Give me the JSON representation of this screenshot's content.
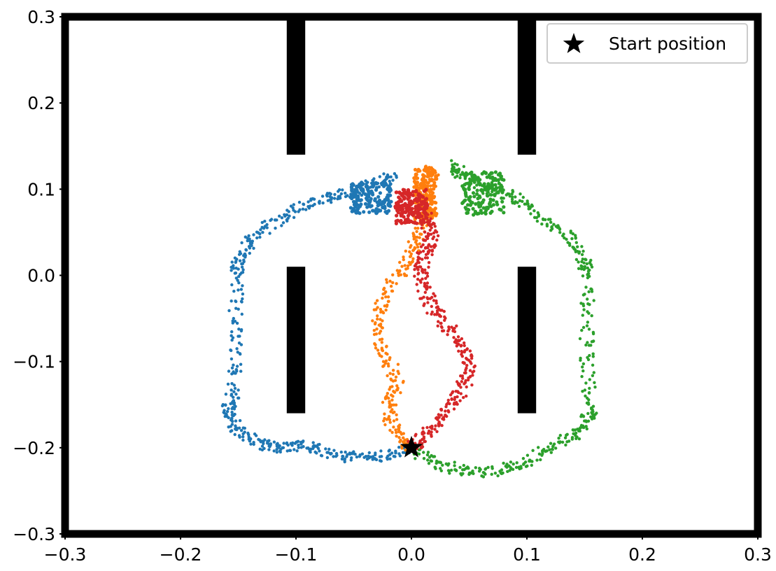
{
  "chart_data": {
    "type": "scatter",
    "title": "",
    "xlabel": "",
    "ylabel": "",
    "xlim": [
      -0.3,
      0.3
    ],
    "ylim": [
      -0.3,
      0.3
    ],
    "x_ticks": [
      -0.3,
      -0.2,
      -0.1,
      0.0,
      0.1,
      0.2,
      0.3
    ],
    "x_tick_labels": [
      "−0.3",
      "−0.2",
      "−0.1",
      "0.0",
      "0.1",
      "0.2",
      "0.3"
    ],
    "y_ticks": [
      -0.3,
      -0.2,
      -0.1,
      0.0,
      0.1,
      0.2,
      0.3
    ],
    "y_tick_labels": [
      "−0.3",
      "−0.2",
      "−0.1",
      "0.0",
      "0.1",
      "0.2",
      "0.3"
    ],
    "grid": false,
    "legend": {
      "location": "upper right",
      "entries": [
        {
          "label": "Start position",
          "marker": "star",
          "color": "#000000"
        }
      ]
    },
    "start_position": {
      "x": 0.0,
      "y": -0.2
    },
    "walls": [
      {
        "x": [
          -0.108,
          -0.092
        ],
        "y": [
          0.14,
          0.3
        ]
      },
      {
        "x": [
          0.092,
          0.108
        ],
        "y": [
          0.14,
          0.3
        ]
      },
      {
        "x": [
          -0.108,
          -0.092
        ],
        "y": [
          -0.16,
          0.01
        ]
      },
      {
        "x": [
          0.092,
          0.108
        ],
        "y": [
          -0.16,
          0.01
        ]
      }
    ],
    "series": [
      {
        "color": "#1f77b4",
        "path": [
          [
            0.0,
            -0.2
          ],
          [
            -0.02,
            -0.208
          ],
          [
            -0.04,
            -0.212
          ],
          [
            -0.06,
            -0.21
          ],
          [
            -0.08,
            -0.202
          ],
          [
            -0.095,
            -0.198
          ],
          [
            -0.11,
            -0.2
          ],
          [
            -0.125,
            -0.198
          ],
          [
            -0.14,
            -0.188
          ],
          [
            -0.152,
            -0.175
          ],
          [
            -0.16,
            -0.158
          ],
          [
            -0.155,
            -0.14
          ],
          [
            -0.152,
            -0.1
          ],
          [
            -0.152,
            -0.05
          ],
          [
            -0.152,
            0.0
          ],
          [
            -0.15,
            0.02
          ],
          [
            -0.14,
            0.04
          ],
          [
            -0.12,
            0.06
          ],
          [
            -0.1,
            0.077
          ],
          [
            -0.08,
            0.088
          ],
          [
            -0.06,
            0.094
          ],
          [
            -0.045,
            0.098
          ],
          [
            -0.03,
            0.108
          ],
          [
            -0.015,
            0.115
          ]
        ],
        "cluster": {
          "center": [
            -0.035,
            0.09
          ],
          "spread": [
            0.018,
            0.018
          ]
        }
      },
      {
        "color": "#ff7f0e",
        "path": [
          [
            0.0,
            -0.2
          ],
          [
            -0.01,
            -0.19
          ],
          [
            -0.018,
            -0.17
          ],
          [
            -0.02,
            -0.145
          ],
          [
            -0.012,
            -0.12
          ],
          [
            -0.025,
            -0.09
          ],
          [
            -0.03,
            -0.06
          ],
          [
            -0.025,
            -0.03
          ],
          [
            -0.012,
            0.0
          ],
          [
            0.0,
            0.025
          ],
          [
            0.007,
            0.045
          ],
          [
            0.01,
            0.065
          ],
          [
            0.012,
            0.085
          ],
          [
            0.015,
            0.105
          ],
          [
            0.018,
            0.125
          ]
        ],
        "cluster": {
          "center": [
            0.012,
            0.095
          ],
          "spread": [
            0.01,
            0.03
          ]
        }
      },
      {
        "color": "#2ca02c",
        "path": [
          [
            0.0,
            -0.2
          ],
          [
            0.02,
            -0.218
          ],
          [
            0.04,
            -0.226
          ],
          [
            0.06,
            -0.23
          ],
          [
            0.08,
            -0.225
          ],
          [
            0.1,
            -0.215
          ],
          [
            0.12,
            -0.2
          ],
          [
            0.14,
            -0.187
          ],
          [
            0.152,
            -0.17
          ],
          [
            0.155,
            -0.15
          ],
          [
            0.152,
            -0.1
          ],
          [
            0.152,
            -0.05
          ],
          [
            0.152,
            0.0
          ],
          [
            0.15,
            0.02
          ],
          [
            0.14,
            0.04
          ],
          [
            0.12,
            0.06
          ],
          [
            0.1,
            0.08
          ],
          [
            0.085,
            0.093
          ],
          [
            0.07,
            0.1
          ],
          [
            0.055,
            0.105
          ],
          [
            0.04,
            0.118
          ],
          [
            0.04,
            0.13
          ]
        ],
        "cluster": {
          "center": [
            0.062,
            0.095
          ],
          "spread": [
            0.018,
            0.025
          ]
        }
      },
      {
        "color": "#d62728",
        "path": [
          [
            0.0,
            -0.2
          ],
          [
            0.008,
            -0.19
          ],
          [
            0.018,
            -0.175
          ],
          [
            0.03,
            -0.16
          ],
          [
            0.04,
            -0.14
          ],
          [
            0.048,
            -0.12
          ],
          [
            0.05,
            -0.1
          ],
          [
            0.045,
            -0.08
          ],
          [
            0.032,
            -0.06
          ],
          [
            0.02,
            -0.04
          ],
          [
            0.012,
            -0.02
          ],
          [
            0.008,
            0.0
          ],
          [
            0.01,
            0.02
          ],
          [
            0.015,
            0.035
          ],
          [
            0.018,
            0.05
          ],
          [
            0.012,
            0.065
          ],
          [
            0.005,
            0.085
          ]
        ],
        "cluster": {
          "center": [
            0.0,
            0.08
          ],
          "spread": [
            0.014,
            0.02
          ]
        }
      }
    ]
  }
}
